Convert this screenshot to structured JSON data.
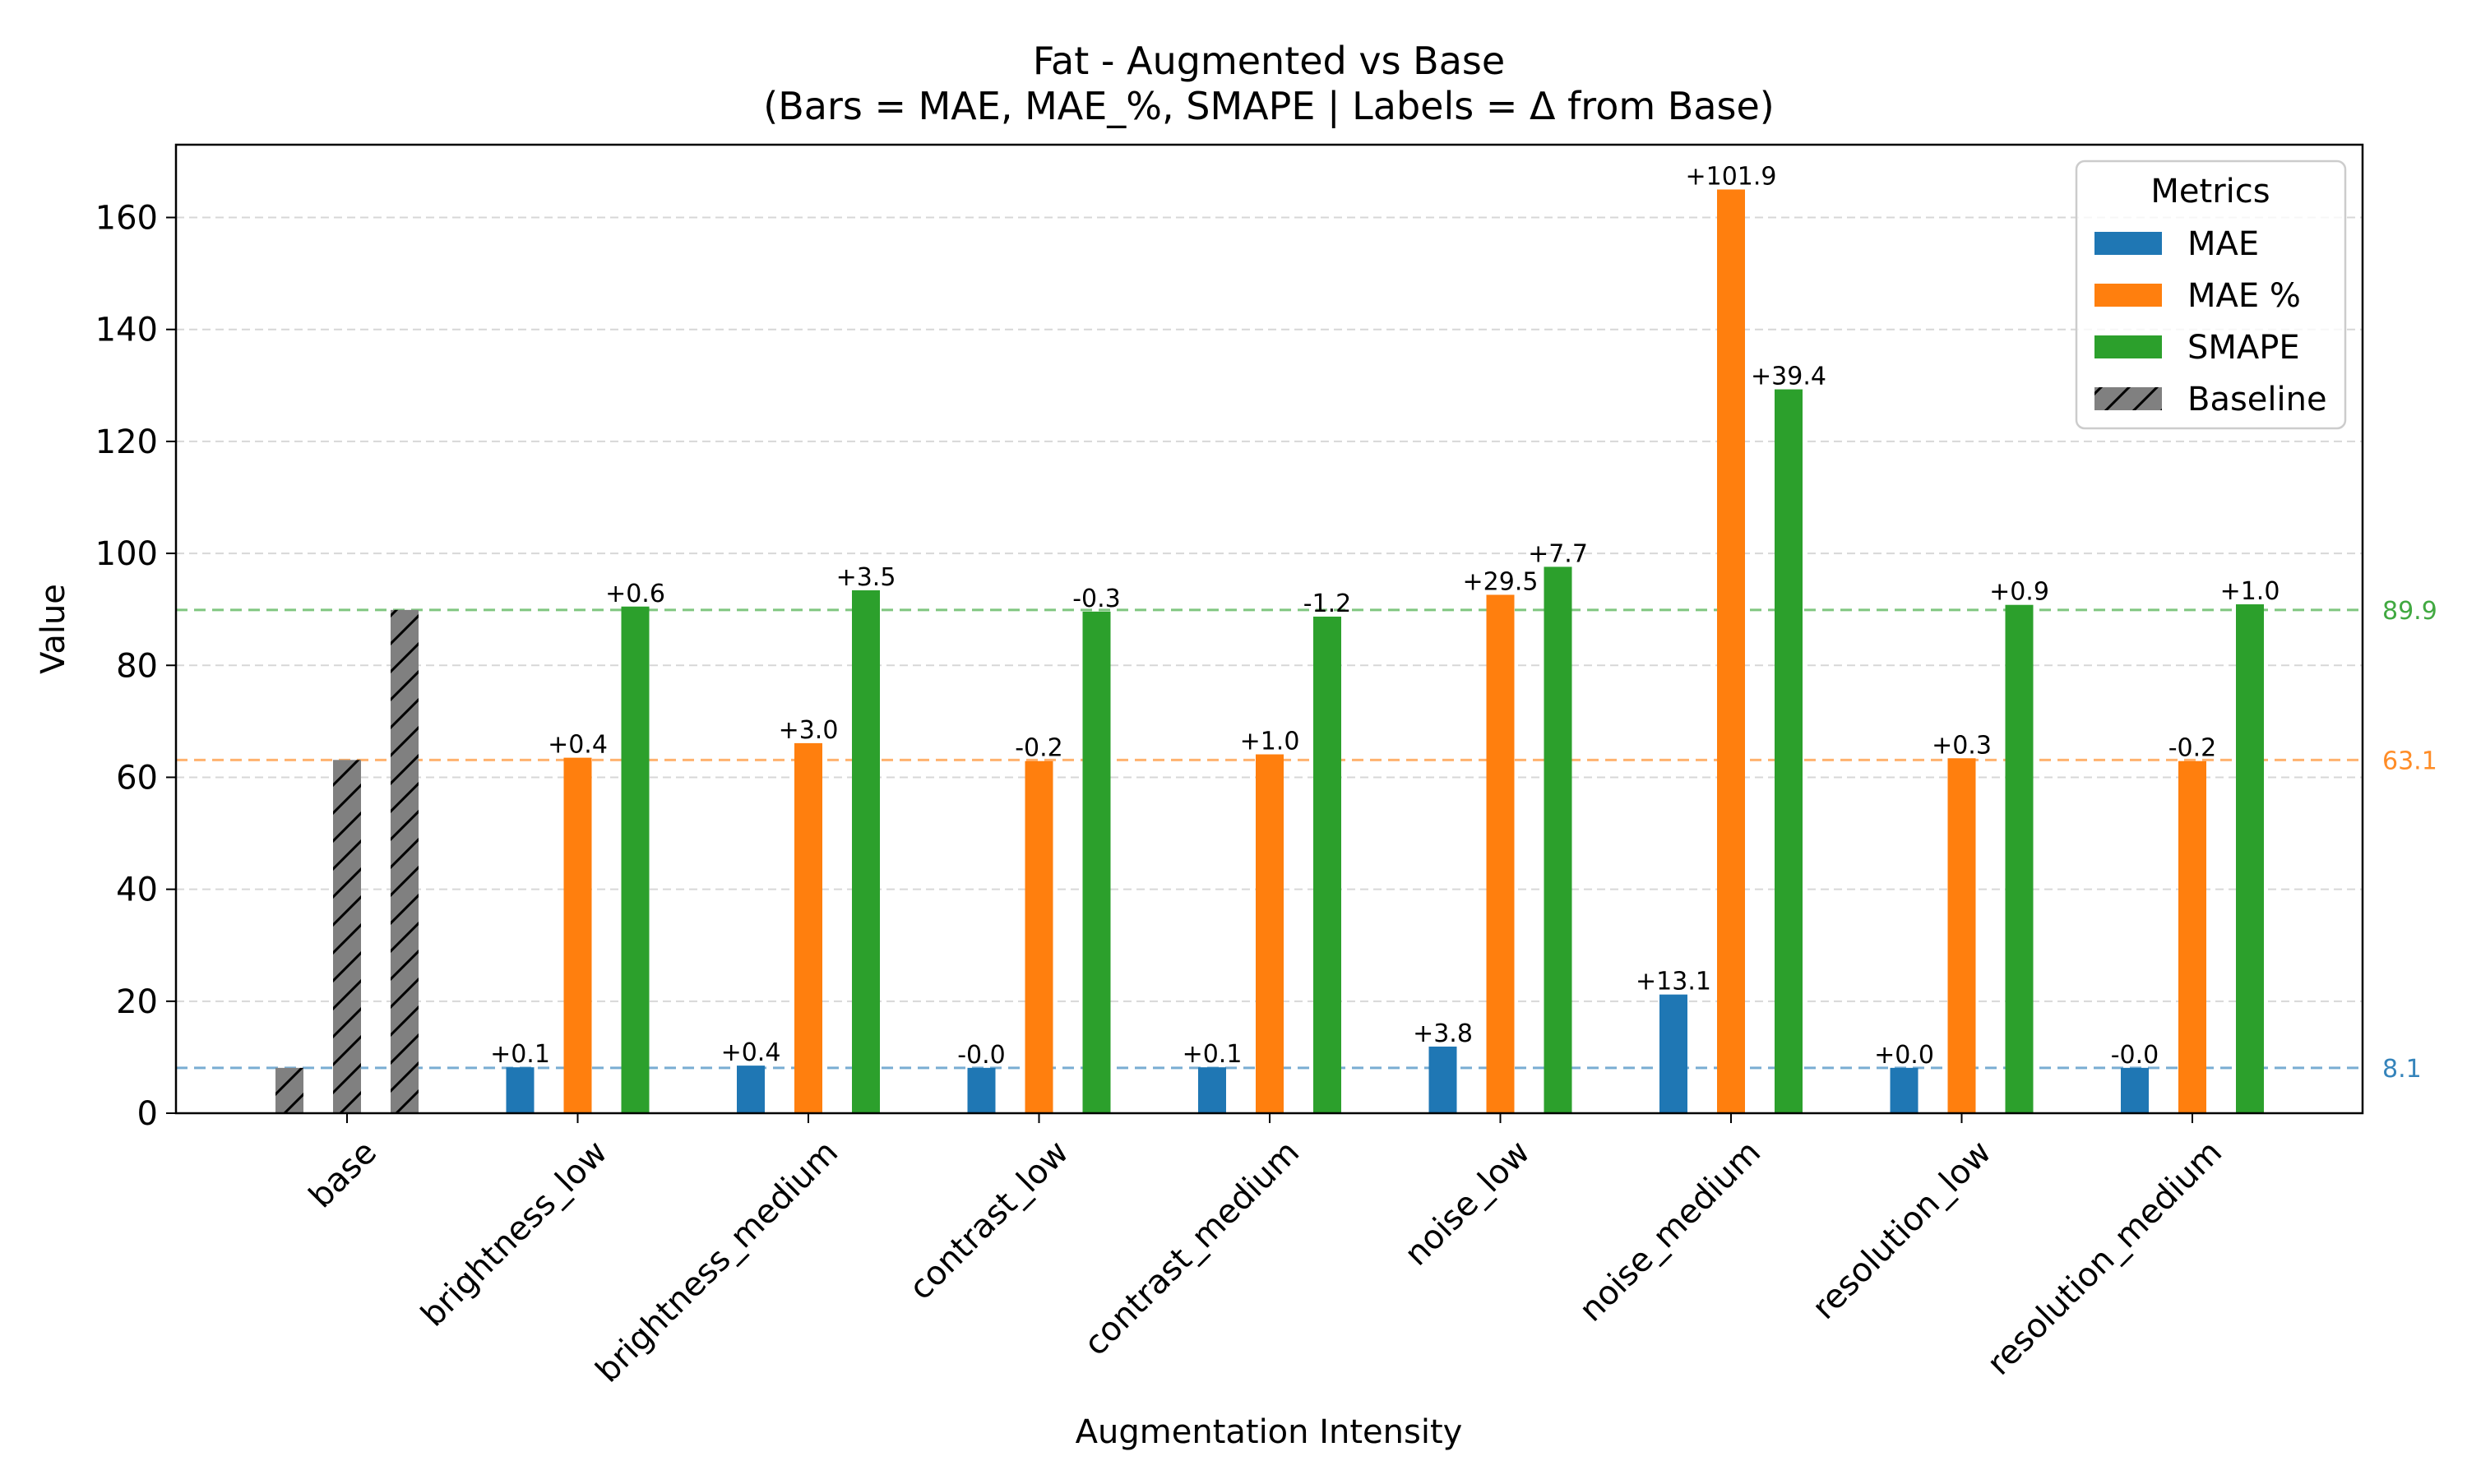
{
  "chart_data": {
    "type": "bar",
    "title": "Fat - Augmented vs Base",
    "subtitle": "(Bars = MAE, MAE_%, SMAPE | Labels = Δ from Base)",
    "xlabel": "Augmentation Intensity",
    "ylabel": "Value",
    "ylim": [
      0,
      173
    ],
    "yticks": [
      "0",
      "20",
      "40",
      "60",
      "80",
      "100",
      "120",
      "140",
      "160"
    ],
    "grid": "y",
    "legend_title": "Metrics",
    "legend_position": "top-right",
    "categories": [
      "base",
      "brightness_low",
      "brightness_medium",
      "contrast_low",
      "contrast_medium",
      "noise_low",
      "noise_medium",
      "resolution_low",
      "resolution_medium"
    ],
    "series": [
      {
        "name": "MAE",
        "color": "#1f77b4",
        "values": [
          8.1,
          8.2,
          8.5,
          8.1,
          8.2,
          11.9,
          21.2,
          8.1,
          8.1
        ],
        "labels": [
          "",
          "+0.1",
          "+0.4",
          "-0.0",
          "+0.1",
          "+3.8",
          "+13.1",
          "+0.0",
          "-0.0"
        ]
      },
      {
        "name": "MAE %",
        "color": "#ff7f0e",
        "values": [
          63.1,
          63.5,
          66.1,
          62.9,
          64.1,
          92.6,
          165.0,
          63.4,
          62.9
        ],
        "labels": [
          "",
          "+0.4",
          "+3.0",
          "-0.2",
          "+1.0",
          "+29.5",
          "+101.9",
          "+0.3",
          "-0.2"
        ]
      },
      {
        "name": "SMAPE",
        "color": "#2ca02c",
        "values": [
          89.9,
          90.5,
          93.4,
          89.6,
          88.7,
          97.6,
          129.3,
          90.8,
          90.9
        ],
        "labels": [
          "",
          "+0.6",
          "+3.5",
          "-0.3",
          "-1.2",
          "+7.7",
          "+39.4",
          "+0.9",
          "+1.0"
        ]
      }
    ],
    "baseline": {
      "name": "Baseline",
      "color": "#808080",
      "category": "base",
      "values": [
        8.1,
        63.1,
        89.9
      ]
    },
    "reference_lines": [
      {
        "value": 8.1,
        "label": "8.1",
        "color": "#1f77b4"
      },
      {
        "value": 63.1,
        "label": "63.1",
        "color": "#ff7f0e"
      },
      {
        "value": 89.9,
        "label": "89.9",
        "color": "#2ca02c"
      }
    ]
  }
}
